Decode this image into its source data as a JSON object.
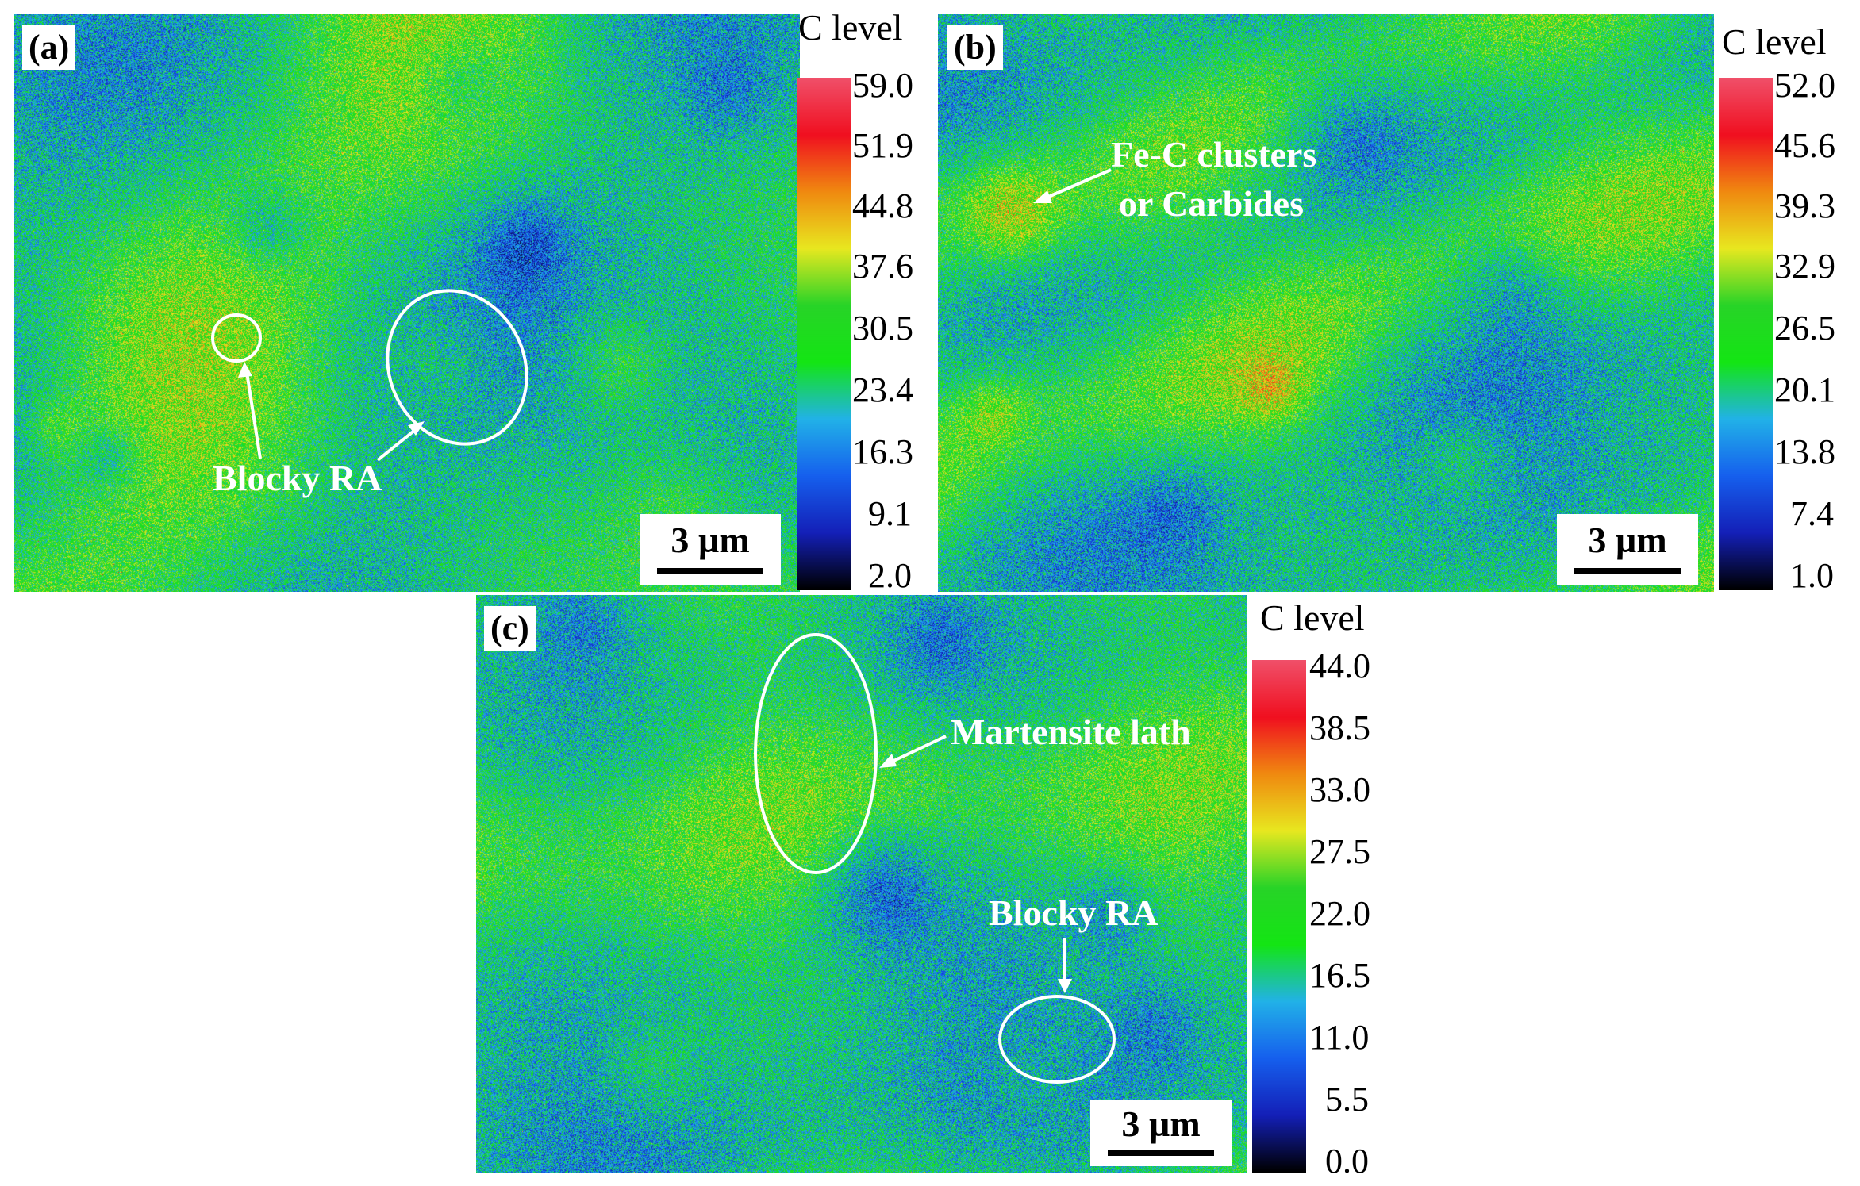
{
  "panels": [
    {
      "label": "(a)",
      "scale_text": "3 µm",
      "annotations": [
        "Blocky RA"
      ],
      "legend": {
        "title": "C level",
        "ticks": [
          "59.0",
          "51.9",
          "44.8",
          "37.6",
          "30.5",
          "23.4",
          "16.3",
          "9.1",
          "2.0"
        ]
      }
    },
    {
      "label": "(b)",
      "scale_text": "3 µm",
      "annotations": [
        "Fe-C clusters",
        "or Carbides"
      ],
      "legend": {
        "title": "C level",
        "ticks": [
          "52.0",
          "45.6",
          "39.3",
          "32.9",
          "26.5",
          "20.1",
          "13.8",
          "7.4",
          "1.0"
        ]
      }
    },
    {
      "label": "(c)",
      "scale_text": "3 µm",
      "annotations": [
        "Martensite lath",
        "Blocky RA"
      ],
      "legend": {
        "title": "C level",
        "ticks": [
          "44.0",
          "38.5",
          "33.0",
          "27.5",
          "22.0",
          "16.5",
          "11.0",
          "5.5",
          "0.0"
        ]
      }
    }
  ],
  "colormap": [
    "#000000",
    "#1420b8",
    "#1660ee",
    "#22b2e8",
    "#14e614",
    "#28d428",
    "#e8e820",
    "#f08a10",
    "#f01020",
    "#f0506a"
  ]
}
